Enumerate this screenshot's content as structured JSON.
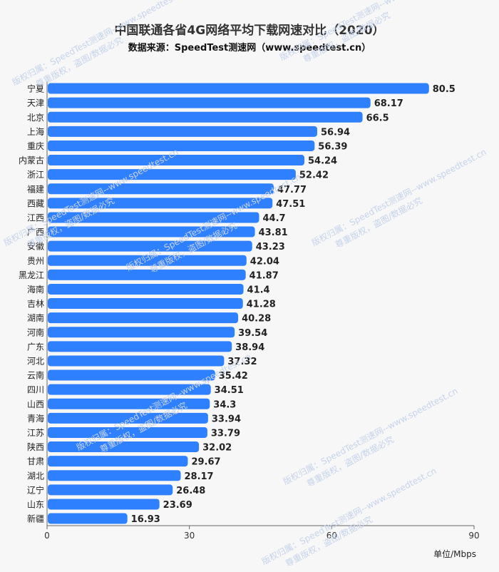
{
  "title": "中国联通各省4G网络平均下载网速对比（2020）",
  "subtitle": "数据来源：SpeedTest测速网（www.speedtest.cn）",
  "unit_label": "单位/Mbps",
  "watermark": {
    "line1": "版权归属：SpeedTest测速网--www.speedtest.cn",
    "line2": "尊重版权，盗图/数据必究"
  },
  "colors": {
    "bar": "#2f80ff",
    "background": "#f7f7f7",
    "axis": "#666666",
    "gridline": "#dddddd",
    "watermark": "#c6d3ea"
  },
  "chart_data": {
    "type": "bar",
    "orientation": "horizontal",
    "categories": [
      "宁夏",
      "天津",
      "北京",
      "上海",
      "重庆",
      "内蒙古",
      "浙江",
      "福建",
      "西藏",
      "江西",
      "广西",
      "安徽",
      "贵州",
      "黑龙江",
      "海南",
      "吉林",
      "湖南",
      "河南",
      "广东",
      "河北",
      "云南",
      "四川",
      "山西",
      "青海",
      "江苏",
      "陕西",
      "甘肃",
      "湖北",
      "辽宁",
      "山东",
      "新疆"
    ],
    "values": [
      80.5,
      68.17,
      66.5,
      56.94,
      56.39,
      54.24,
      52.42,
      47.77,
      47.51,
      44.7,
      43.81,
      43.23,
      42.04,
      41.87,
      41.4,
      41.28,
      40.28,
      39.54,
      38.94,
      37.32,
      35.42,
      34.51,
      34.3,
      33.94,
      33.79,
      32.02,
      29.67,
      28.17,
      26.48,
      23.69,
      16.93
    ],
    "value_labels": [
      "80.5",
      "68.17",
      "66.5",
      "56.94",
      "56.39",
      "54.24",
      "52.42",
      "47.77",
      "47.51",
      "44.7",
      "43.81",
      "43.23",
      "42.04",
      "41.87",
      "41.4",
      "41.28",
      "40.28",
      "39.54",
      "38.94",
      "37.32",
      "35.42",
      "34.51",
      "34.3",
      "33.94",
      "33.79",
      "32.02",
      "29.67",
      "28.17",
      "26.48",
      "23.69",
      "16.93"
    ],
    "x_ticks": [
      "0",
      "30",
      "60",
      "90"
    ],
    "xlim": [
      0,
      90
    ],
    "xlabel": "单位/Mbps",
    "ylabel": "",
    "grid": false,
    "legend": "none"
  }
}
